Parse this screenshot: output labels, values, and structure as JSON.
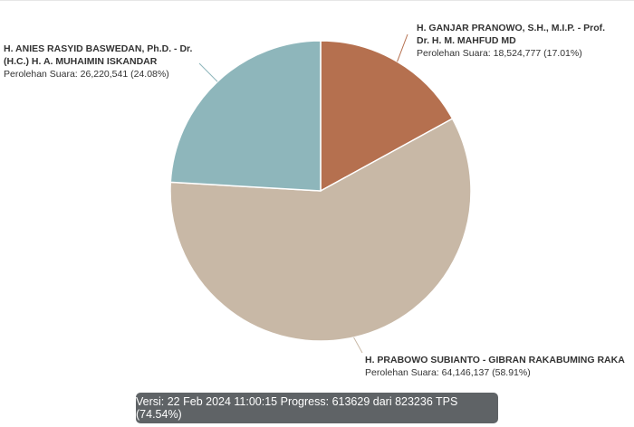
{
  "chart_data": {
    "type": "pie",
    "slices": [
      {
        "name_line1": "H. GANJAR PRANOWO, S.H., M.I.P. - Prof.",
        "name_line2": "Dr. H. M. MAHFUD MD",
        "vote_text": "Perolehan Suara: 18,524,777 (17.01%)",
        "votes": 18524777,
        "percent": 17.01,
        "color": "#b5704f"
      },
      {
        "name_line1": "H. PRABOWO SUBIANTO - GIBRAN RAKABUMING RAKA",
        "name_line2": "",
        "vote_text": "Perolehan Suara: 64,146,137 (58.91%)",
        "votes": 64146137,
        "percent": 58.91,
        "color": "#c8b8a6"
      },
      {
        "name_line1": "H. ANIES RASYID BASWEDAN, Ph.D. - Dr.",
        "name_line2": "(H.C.) H. A. MUHAIMIN ISKANDAR",
        "vote_text": "Perolehan Suara: 26,220,541 (24.08%)",
        "votes": 26220541,
        "percent": 24.08,
        "color": "#8eb6bb"
      }
    ]
  },
  "footer": {
    "status_text": "Versi: 22 Feb 2024 11:00:15 Progress: 613629 dari 823236 TPS (74.54%)"
  }
}
